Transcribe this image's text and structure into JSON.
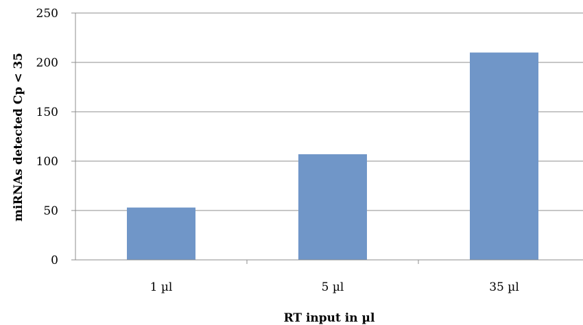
{
  "chart_data": {
    "type": "bar",
    "categories": [
      "1 µl",
      "5 µl",
      "35 µl"
    ],
    "values": [
      53,
      107,
      210
    ],
    "title": "",
    "xlabel": "RT input in µl",
    "ylabel": "miRNAs detected Cp < 35",
    "ylim": [
      0,
      250
    ],
    "yticks": [
      0,
      50,
      100,
      150,
      200,
      250
    ],
    "grid": true,
    "legend": "none",
    "bar_color": "#7096C8",
    "grid_color": "#8c8c8c"
  }
}
